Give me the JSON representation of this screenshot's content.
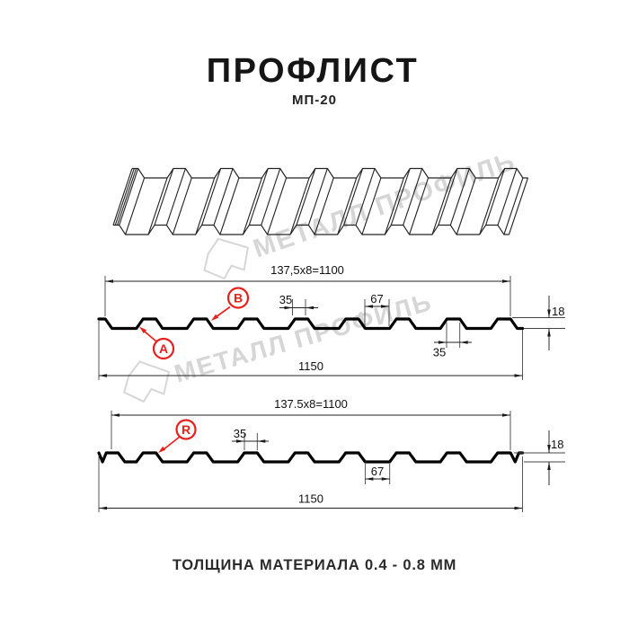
{
  "title": "ПРОФЛИСТ",
  "subtitle": "МП-20",
  "footer": "ТОЛЩИНА МАТЕРИАЛА 0.4 - 0.8 ММ",
  "watermark": {
    "brand": "МЕТАЛЛ ПРОФИЛЬ",
    "color": "#d4d4d4"
  },
  "colors": {
    "marker": "#e8201d",
    "line": "#111111"
  },
  "profile_top": {
    "cover_width": "137,5x8=1100",
    "rib_top_width": "35",
    "valley_width": "67",
    "height": "18",
    "rib_bottom_width": "35",
    "total_width": "1150",
    "marker_a": "A",
    "marker_b": "B"
  },
  "profile_bottom": {
    "cover_width": "137.5x8=1100",
    "rib_top_width": "35",
    "valley_width": "67",
    "height": "18",
    "total_width": "1150",
    "marker_r": "R"
  }
}
